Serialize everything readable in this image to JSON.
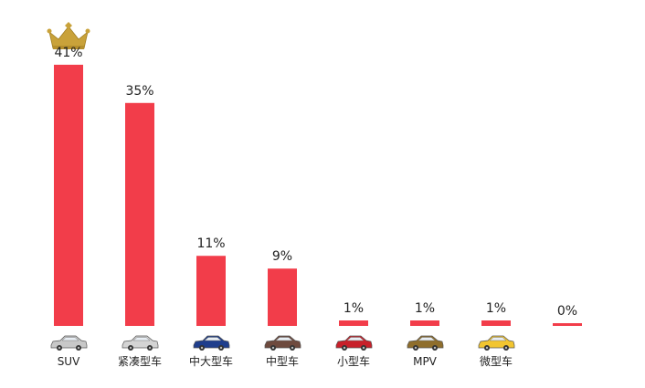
{
  "colors": {
    "bar": "#f23d4a",
    "crown": "#c9a23a",
    "background": "#ffffff"
  },
  "top_badge_icon": "crown-icon",
  "chart_data": {
    "type": "bar",
    "title": "",
    "xlabel": "",
    "ylabel": "",
    "ylim": [
      0,
      45
    ],
    "grid": false,
    "categories": [
      "SUV",
      "紧凑型车",
      "中大型车",
      "中型车",
      "小型车",
      "MPV",
      "微型车",
      ""
    ],
    "values": [
      41,
      35,
      11,
      9,
      1,
      1,
      1,
      0
    ],
    "value_labels": [
      "41%",
      "35%",
      "11%",
      "9%",
      "1%",
      "1%",
      "1%",
      "0%"
    ],
    "category_icons": [
      {
        "name": "suv-car-icon",
        "color": "#c8c8c8"
      },
      {
        "name": "compact-car-icon",
        "color": "#d4d4d4"
      },
      {
        "name": "large-sedan-icon",
        "color": "#1f3e8c"
      },
      {
        "name": "midsize-sedan-icon",
        "color": "#6e4a3e"
      },
      {
        "name": "small-hatchback-icon",
        "color": "#c8202a"
      },
      {
        "name": "mpv-icon",
        "color": "#8f6e2c"
      },
      {
        "name": "micro-car-icon",
        "color": "#f2c530"
      },
      null
    ]
  }
}
